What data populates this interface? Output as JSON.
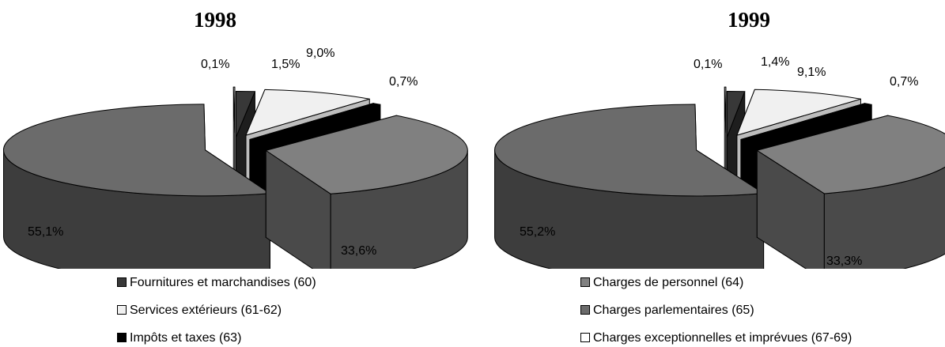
{
  "chart_data": [
    {
      "type": "pie",
      "title": "1998",
      "categories": [
        "Fournitures et marchandises (60)",
        "Services extérieurs (61-62)",
        "Impôts et taxes (63)",
        "Charges de personnel (64)",
        "Charges parlementaires (65)",
        "Charges exceptionnelles et imprévues (67-69)"
      ],
      "values": [
        1.5,
        9.0,
        0.7,
        33.6,
        55.1,
        0.1
      ],
      "value_labels": [
        "1,5%",
        "9,0%",
        "0,7%",
        "33,6%",
        "55,1%",
        "0,1%"
      ]
    },
    {
      "type": "pie",
      "title": "1999",
      "categories": [
        "Fournitures et marchandises (60)",
        "Services extérieurs (61-62)",
        "Impôts et taxes (63)",
        "Charges de personnel (64)",
        "Charges parlementaires (65)",
        "Charges exceptionnelles et imprévues (67-69)"
      ],
      "values": [
        1.4,
        9.1,
        0.7,
        33.3,
        55.2,
        0.1
      ],
      "value_labels": [
        "1,4%",
        "9,1%",
        "0,7%",
        "33,3%",
        "55,2%",
        "0,1%"
      ]
    }
  ],
  "legend": {
    "placement": "bottom",
    "items": [
      {
        "label": "Fournitures et marchandises (60)",
        "color": "#383838"
      },
      {
        "label": "Services extérieurs (61-62)",
        "color": "#f0f0f0"
      },
      {
        "label": "Impôts et taxes (63)",
        "color": "#000000"
      },
      {
        "label": "Charges de personnel (64)",
        "color": "#808080"
      },
      {
        "label": "Charges parlementaires (65)",
        "color": "#6b6b6b"
      },
      {
        "label": "Charges exceptionnelles et imprévues (67-69)",
        "color": "#ffffff"
      }
    ]
  },
  "colors": {
    "fournitures": "#383838",
    "services": "#f0f0f0",
    "impots": "#000000",
    "personnel": "#808080",
    "parlementaires": "#6b6b6b",
    "exceptionnelles": "#ffffff"
  }
}
